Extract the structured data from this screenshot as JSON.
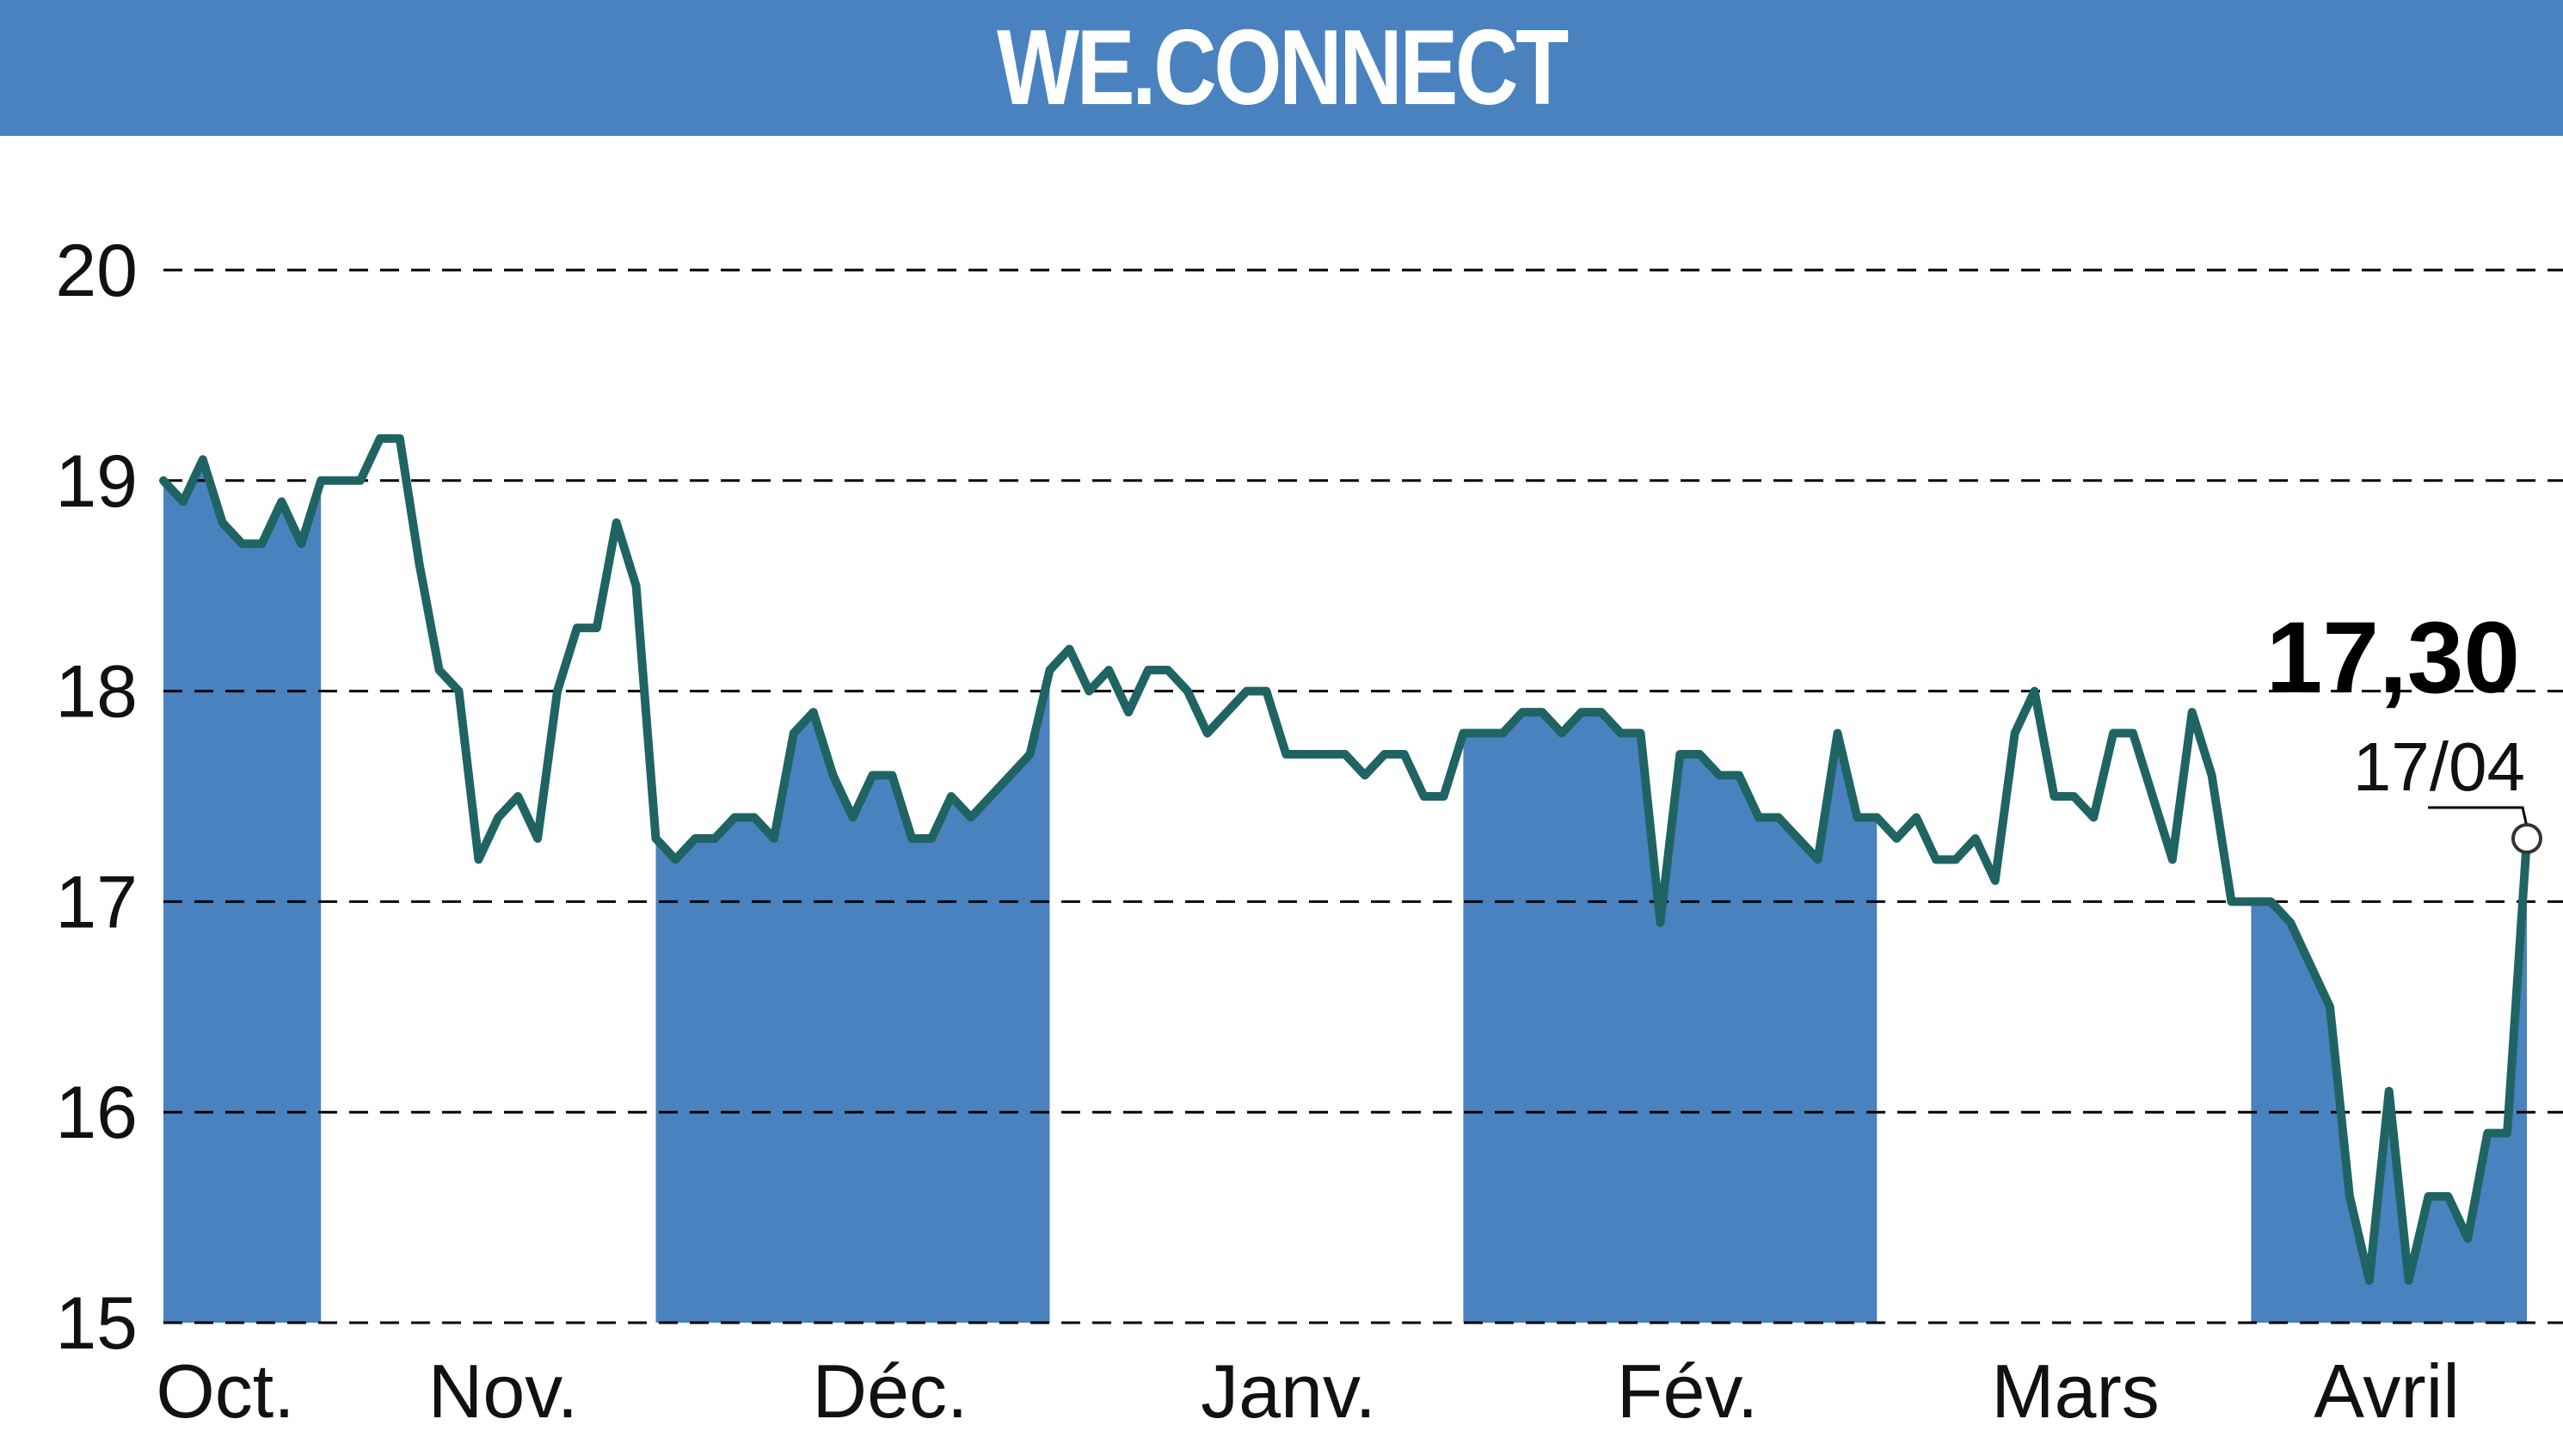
{
  "title": "WE.CONNECT",
  "last_value_label": "17,30",
  "last_date_label": "17/04",
  "colors": {
    "band": "#4a82c0",
    "line": "#1f6462",
    "grid": "#000000",
    "header": "#4a82c0"
  },
  "chart_data": {
    "type": "line",
    "title": "WE.CONNECT",
    "ylim": [
      15,
      20
    ],
    "yticks": [
      "20",
      "19",
      "18",
      "17",
      "16",
      "15"
    ],
    "grid": "horizontal dashed",
    "months": [
      "Oct.",
      "Nov.",
      "Déc.",
      "Janv.",
      "Fév.",
      "Mars",
      "Avril"
    ],
    "shaded_months": [
      "Oct.",
      "Déc.",
      "Fév.",
      "Avril"
    ],
    "series": [
      {
        "values": [
          19.0,
          18.9,
          19.1,
          18.8,
          18.7,
          18.7,
          18.9,
          18.7,
          19.0,
          19.0,
          19.0,
          19.2,
          19.2,
          18.6,
          18.1,
          18.0,
          17.2,
          17.4,
          17.5,
          17.3,
          18.0,
          18.3,
          18.3,
          18.8,
          18.5,
          17.3,
          17.2,
          17.3,
          17.3,
          17.4,
          17.4,
          17.3,
          17.8,
          17.9,
          17.6,
          17.4,
          17.6,
          17.6,
          17.3,
          17.3,
          17.5,
          17.4,
          17.5,
          17.6,
          17.7,
          18.1,
          18.2,
          18.0,
          18.1,
          17.9,
          18.1,
          18.1,
          18.0,
          17.8,
          17.9,
          18.0,
          18.0,
          17.7,
          17.7,
          17.7,
          17.7,
          17.6,
          17.7,
          17.7,
          17.5,
          17.5,
          17.8,
          17.8,
          17.8,
          17.9,
          17.9,
          17.8,
          17.9,
          17.9,
          17.8,
          17.8,
          16.9,
          17.7,
          17.7,
          17.6,
          17.6,
          17.4,
          17.4,
          17.3,
          17.2,
          17.8,
          17.4,
          17.4,
          17.3,
          17.4,
          17.2,
          17.2,
          17.3,
          17.1,
          17.8,
          18.0,
          17.5,
          17.5,
          17.4,
          17.8,
          17.8,
          17.5,
          17.2,
          17.9,
          17.6,
          17.0,
          17.0,
          17.0,
          16.9,
          16.7,
          16.5,
          15.6,
          15.2,
          16.1,
          15.2,
          15.6,
          15.6,
          15.4,
          15.9,
          15.9,
          17.3
        ]
      }
    ],
    "last": {
      "value": 17.3,
      "date": "17/04"
    }
  }
}
